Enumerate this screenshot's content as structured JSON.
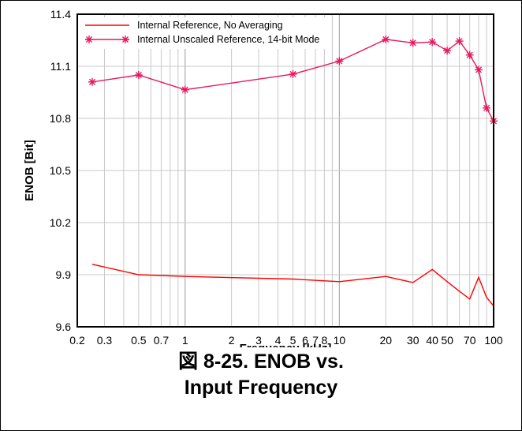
{
  "chart_data": {
    "type": "line",
    "xlabel": "Frequency [kHz]",
    "ylabel": "ENOB [Bit]",
    "x_scale": "log",
    "xlim": [
      0.2,
      100
    ],
    "ylim": [
      9.6,
      11.4
    ],
    "x_ticks": [
      0.2,
      0.3,
      0.5,
      0.7,
      1,
      2,
      3,
      4,
      5,
      6,
      7,
      8,
      10,
      20,
      30,
      40,
      50,
      70,
      100
    ],
    "x_tick_labels": [
      "0.2",
      "0.3",
      "0.5",
      "0.7",
      "1",
      "2",
      "3",
      "4",
      "5",
      "6",
      "7",
      "8",
      "10",
      "20",
      "30",
      "40",
      "50",
      "70",
      "100"
    ],
    "y_ticks": [
      9.6,
      9.9,
      10.2,
      10.5,
      10.8,
      11.1,
      11.4
    ],
    "y_tick_labels": [
      "9.6",
      "9.9",
      "10.2",
      "10.5",
      "10.8",
      "11.1",
      "11.4"
    ],
    "grid": true,
    "legend_position": "top-left",
    "series": [
      {
        "name": "Internal Reference, No Averaging",
        "color": "#ff0000",
        "marker": "none",
        "x": [
          0.25,
          0.5,
          1,
          5,
          10,
          20,
          30,
          40,
          50,
          60,
          70,
          80,
          90,
          100
        ],
        "y": [
          9.96,
          9.9,
          9.89,
          9.875,
          9.86,
          9.89,
          9.855,
          9.93,
          9.86,
          9.805,
          9.76,
          9.885,
          9.77,
          9.72
        ]
      },
      {
        "name": "Internal Unscaled Reference, 14-bit Mode",
        "color": "#e8175d",
        "marker": "asterisk",
        "x": [
          0.25,
          0.5,
          1,
          5,
          10,
          20,
          30,
          40,
          50,
          60,
          70,
          80,
          90,
          100
        ],
        "y": [
          11.01,
          11.05,
          10.965,
          11.055,
          11.13,
          11.255,
          11.235,
          11.24,
          11.19,
          11.245,
          11.165,
          11.08,
          10.86,
          10.785
        ]
      }
    ]
  },
  "caption": {
    "line1": "図 8-25. ENOB vs.",
    "line2": "Input Frequency"
  }
}
